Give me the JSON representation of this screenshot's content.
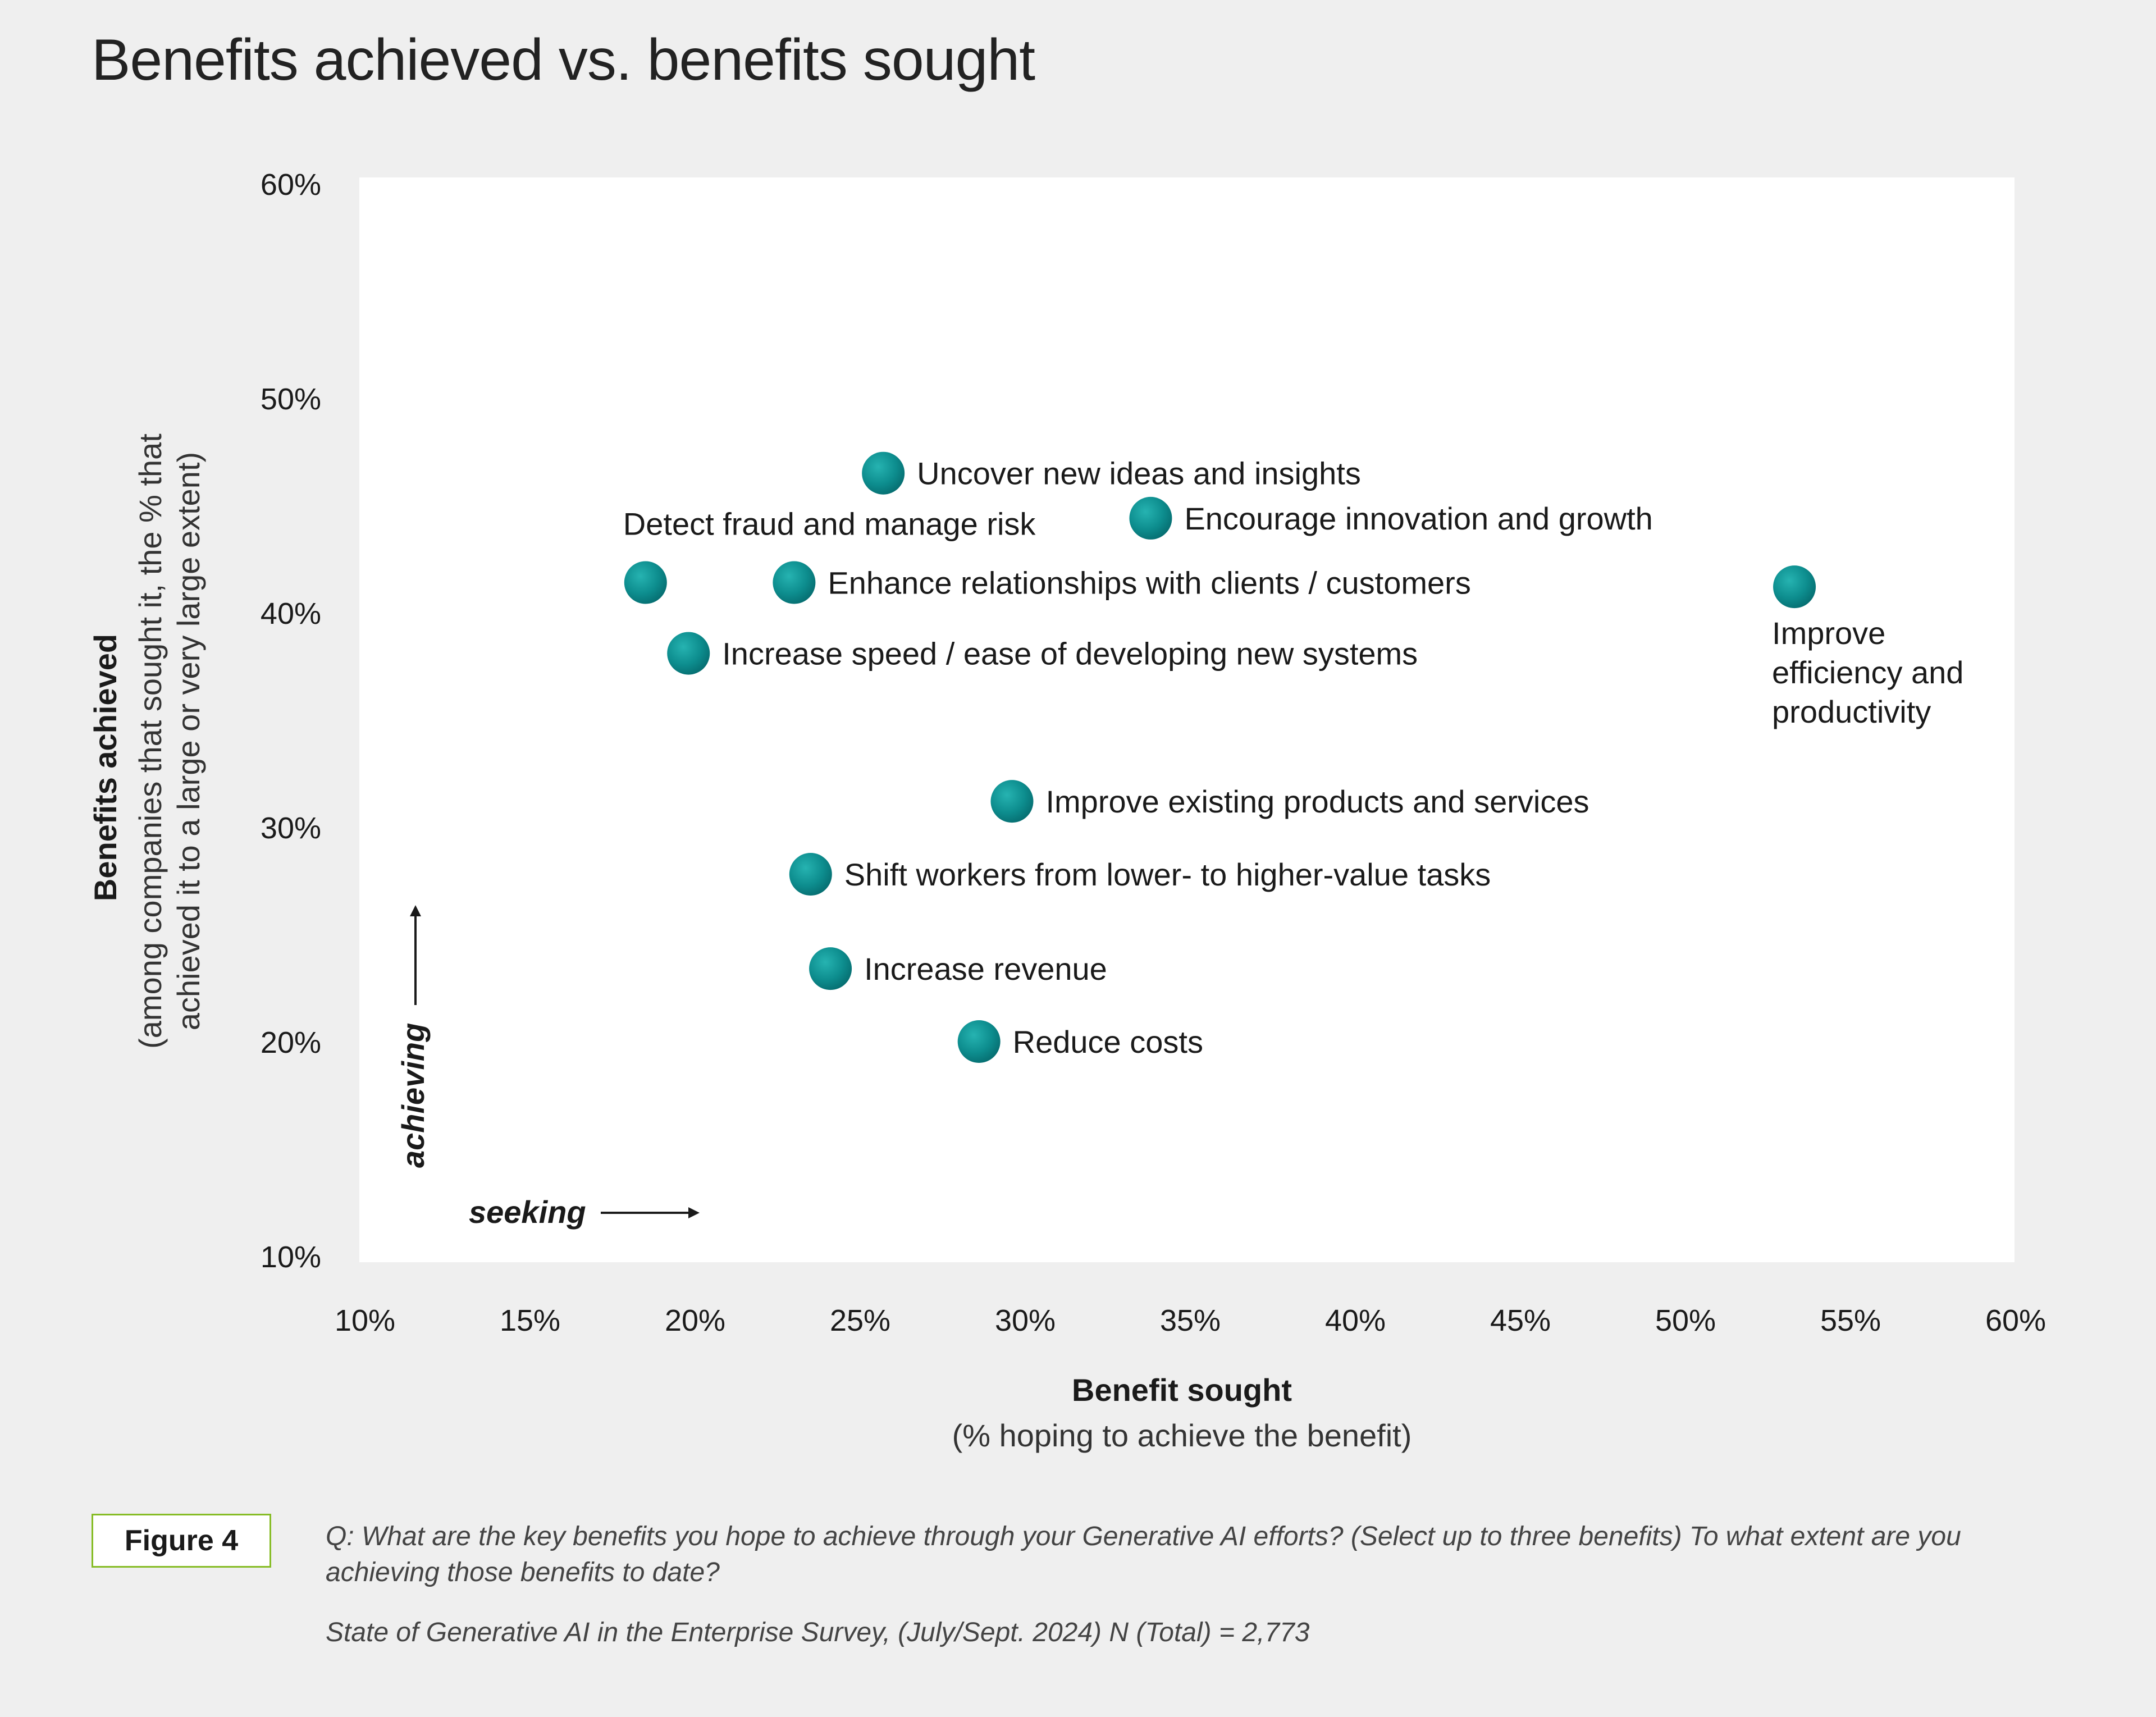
{
  "header": {
    "title": "Benefits achieved vs. benefits sought"
  },
  "chart_data": {
    "type": "scatter",
    "title": "Benefits achieved vs. benefits sought",
    "xlabel": "Benefit sought",
    "xlabel_sub": "(% hoping to achieve the benefit)",
    "ylabel": "Benefits achieved",
    "ylabel_sub_line1": "(among companies that sought it, the % that",
    "ylabel_sub_line2": "achieved it to a large or very large extent)",
    "xlim": [
      10,
      60
    ],
    "ylim": [
      10,
      60
    ],
    "x_ticks": [
      10,
      15,
      20,
      25,
      30,
      35,
      40,
      45,
      50,
      55,
      60
    ],
    "x_tick_labels": [
      "10%",
      "15%",
      "20%",
      "25%",
      "30%",
      "35%",
      "40%",
      "45%",
      "50%",
      "55%",
      "60%"
    ],
    "y_ticks": [
      10,
      20,
      30,
      40,
      50,
      60
    ],
    "y_tick_labels": [
      "10%",
      "20%",
      "30%",
      "40%",
      "50%",
      "60%"
    ],
    "grid": false,
    "hint_x": "seeking",
    "hint_y": "achieving",
    "marker_color": "#0d8d8e",
    "points": [
      {
        "label": "Uncover new ideas and insights",
        "x": 25.7,
        "y": 46.5
      },
      {
        "label": "Encourage innovation and growth",
        "x": 33.8,
        "y": 44.4
      },
      {
        "label": "Detect fraud and manage risk",
        "x": 18.5,
        "y": 41.4
      },
      {
        "label": "Enhance relationships with clients / customers",
        "x": 23.0,
        "y": 41.4
      },
      {
        "label": "Improve efficiency and productivity",
        "x": 53.3,
        "y": 41.2
      },
      {
        "label": "Increase speed / ease of developing new systems",
        "x": 19.8,
        "y": 38.1
      },
      {
        "label": "Improve existing products and services",
        "x": 29.6,
        "y": 31.2
      },
      {
        "label": "Shift workers from lower- to higher-value tasks",
        "x": 23.5,
        "y": 27.8
      },
      {
        "label": "Increase revenue",
        "x": 24.1,
        "y": 23.4
      },
      {
        "label": "Reduce costs",
        "x": 28.6,
        "y": 20.0
      }
    ]
  },
  "footer": {
    "figure_label": "Figure 4",
    "question": "Q: What are the key benefits you hope to achieve through your Generative AI efforts? (Select up to three benefits) To what extent are you achieving those benefits to date?",
    "source": "State of Generative AI in the Enterprise Survey, (July/Sept. 2024) N (Total) = 2,773"
  }
}
